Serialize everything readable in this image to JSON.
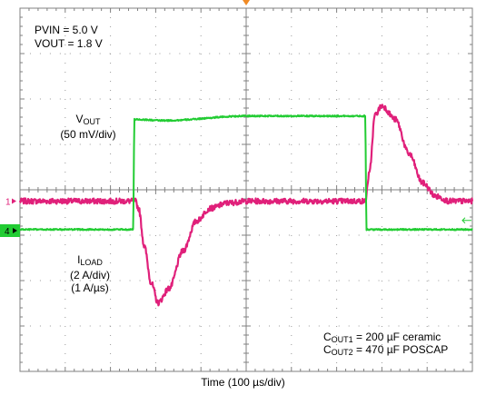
{
  "chart_data": {
    "type": "line",
    "xlabel": "Time (100 µs/div)",
    "grid": true,
    "divisions": {
      "x": 10,
      "y": 8
    },
    "trigger_marker_color": "#f08a24",
    "channels": [
      {
        "id": "1",
        "name_main": "V",
        "name_sub": "OUT",
        "scale": "(50 mV/div)",
        "color": "#e0207a",
        "unit": "mV",
        "ylim": [
          -187.5,
          212.5
        ],
        "points": [
          [
            0,
            0
          ],
          [
            2.55,
            0
          ],
          [
            2.62,
            -8
          ],
          [
            2.75,
            -50
          ],
          [
            2.9,
            -90
          ],
          [
            3.05,
            -112
          ],
          [
            3.3,
            -96
          ],
          [
            3.6,
            -55
          ],
          [
            3.9,
            -22
          ],
          [
            4.2,
            -8
          ],
          [
            4.6,
            -2
          ],
          [
            5.0,
            0
          ],
          [
            7.63,
            0
          ],
          [
            7.72,
            30
          ],
          [
            7.85,
            95
          ],
          [
            8.0,
            105
          ],
          [
            8.3,
            90
          ],
          [
            8.6,
            52
          ],
          [
            8.9,
            20
          ],
          [
            9.2,
            5
          ],
          [
            9.5,
            0
          ],
          [
            10,
            0
          ]
        ]
      },
      {
        "id": "4",
        "name_main": "I",
        "name_sub": "LOAD",
        "scale": "(2 A/div)",
        "slew": "(1 A/µs)",
        "color": "#22cc33",
        "unit": "A",
        "ylim": [
          -6.2,
          9.8
        ],
        "points": [
          [
            0,
            0.05
          ],
          [
            2.5,
            0.05
          ],
          [
            2.53,
            4.9
          ],
          [
            3.2,
            4.85
          ],
          [
            5,
            5.05
          ],
          [
            7.63,
            5.05
          ],
          [
            7.66,
            0.05
          ],
          [
            10,
            0.05
          ]
        ]
      }
    ],
    "info": {
      "pvin": "PVIN = 5.0 V",
      "vout": "VOUT = 1.8 V"
    },
    "capacitors": [
      {
        "c": "C",
        "sub": "OUT1",
        "text": " = 200 µF ceramic"
      },
      {
        "c": "C",
        "sub": "OUT2",
        "text": " = 470 µF POSCAP"
      }
    ]
  }
}
